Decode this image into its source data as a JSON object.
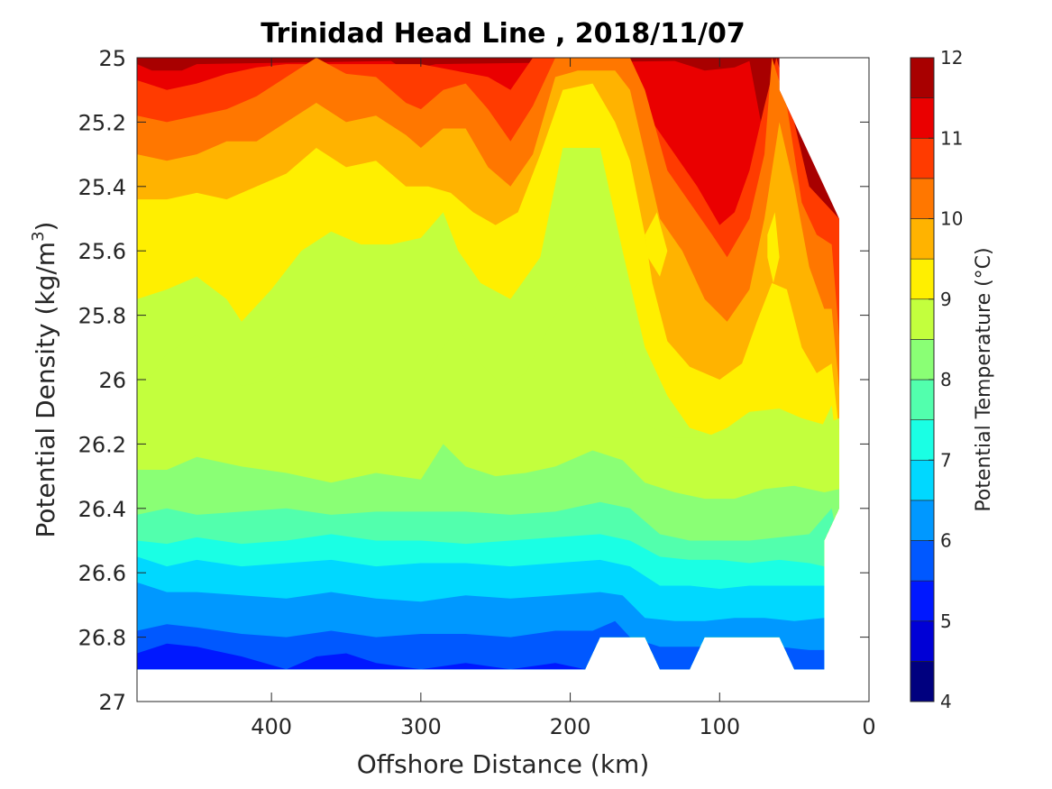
{
  "chart_data": {
    "type": "heatmap",
    "title": "Trinidad Head Line , 2018/11/07",
    "xlabel": "Offshore Distance (km)",
    "ylabel_main": "Potential Density (kg/m",
    "ylabel_sup": "3",
    "ylabel_end": ")",
    "xlim": [
      490,
      0
    ],
    "ylim": [
      25,
      27
    ],
    "y_reversed": true,
    "x_reversed": true,
    "x_ticks": [
      400,
      300,
      200,
      100,
      0
    ],
    "y_ticks": [
      25,
      25.2,
      25.4,
      25.6,
      25.8,
      26,
      26.2,
      26.4,
      26.6,
      26.8,
      27
    ],
    "x_tick_labels": [
      "400",
      "300",
      "200",
      "100",
      "0"
    ],
    "y_tick_labels": [
      "25",
      "25.2",
      "25.4",
      "25.6",
      "25.8",
      "26",
      "26.2",
      "26.4",
      "26.6",
      "26.8",
      "27"
    ],
    "colorbar": {
      "label": "Potential Temperature (°C)",
      "range": [
        4,
        12
      ],
      "ticks": [
        4,
        5,
        6,
        7,
        8,
        9,
        10,
        11,
        12
      ],
      "tick_labels": [
        "4",
        "5",
        "6",
        "7",
        "8",
        "9",
        "10",
        "11",
        "12"
      ],
      "levels": [
        4,
        4.5,
        5,
        5.5,
        6,
        6.5,
        7,
        7.5,
        8,
        8.5,
        9,
        9.5,
        10,
        10.5,
        11,
        11.5,
        12
      ],
      "colors": [
        "#00007f",
        "#0000d6",
        "#0018ff",
        "#0058ff",
        "#0098ff",
        "#00d8ff",
        "#1affe4",
        "#52ffad",
        "#8aff75",
        "#c3ff3d",
        "#ffef00",
        "#ffb300",
        "#ff7700",
        "#ff3b00",
        "#ea0000",
        "#a80000"
      ]
    },
    "contour_bands": [
      {
        "level": 8.0,
        "boundary": [
          [
            490,
            26.42
          ],
          [
            470,
            26.4
          ],
          [
            450,
            26.42
          ],
          [
            420,
            26.41
          ],
          [
            390,
            26.4
          ],
          [
            360,
            26.42
          ],
          [
            330,
            26.41
          ],
          [
            300,
            26.41
          ],
          [
            270,
            26.41
          ],
          [
            240,
            26.42
          ],
          [
            210,
            26.41
          ],
          [
            180,
            26.38
          ],
          [
            160,
            26.4
          ],
          [
            140,
            26.48
          ],
          [
            120,
            26.5
          ],
          [
            100,
            26.5
          ],
          [
            80,
            26.5
          ],
          [
            60,
            26.49
          ],
          [
            40,
            26.48
          ],
          [
            25,
            26.4
          ]
        ]
      },
      {
        "level": 7.5,
        "boundary": [
          [
            490,
            26.5
          ],
          [
            470,
            26.51
          ],
          [
            450,
            26.49
          ],
          [
            420,
            26.51
          ],
          [
            390,
            26.5
          ],
          [
            360,
            26.48
          ],
          [
            330,
            26.5
          ],
          [
            300,
            26.5
          ],
          [
            270,
            26.51
          ],
          [
            240,
            26.5
          ],
          [
            210,
            26.49
          ],
          [
            180,
            26.48
          ],
          [
            160,
            26.5
          ],
          [
            140,
            26.55
          ],
          [
            120,
            26.56
          ],
          [
            100,
            26.56
          ],
          [
            80,
            26.57
          ],
          [
            60,
            26.56
          ],
          [
            40,
            26.57
          ],
          [
            30,
            26.58
          ]
        ]
      },
      {
        "level": 7.0,
        "boundary": [
          [
            490,
            26.55
          ],
          [
            470,
            26.58
          ],
          [
            450,
            26.56
          ],
          [
            420,
            26.58
          ],
          [
            390,
            26.57
          ],
          [
            360,
            26.56
          ],
          [
            330,
            26.58
          ],
          [
            300,
            26.57
          ],
          [
            270,
            26.57
          ],
          [
            240,
            26.58
          ],
          [
            210,
            26.57
          ],
          [
            180,
            26.56
          ],
          [
            160,
            26.58
          ],
          [
            140,
            26.64
          ],
          [
            120,
            26.64
          ],
          [
            100,
            26.65
          ],
          [
            80,
            26.64
          ],
          [
            60,
            26.64
          ],
          [
            40,
            26.64
          ],
          [
            30,
            26.64
          ]
        ]
      },
      {
        "level": 6.5,
        "boundary": [
          [
            490,
            26.63
          ],
          [
            470,
            26.66
          ],
          [
            450,
            26.66
          ],
          [
            420,
            26.67
          ],
          [
            390,
            26.68
          ],
          [
            360,
            26.66
          ],
          [
            330,
            26.68
          ],
          [
            300,
            26.69
          ],
          [
            270,
            26.67
          ],
          [
            240,
            26.68
          ],
          [
            210,
            26.67
          ],
          [
            180,
            26.66
          ],
          [
            165,
            26.67
          ],
          [
            150,
            26.74
          ],
          [
            130,
            26.75
          ],
          [
            110,
            26.75
          ],
          [
            90,
            26.74
          ],
          [
            70,
            26.74
          ],
          [
            50,
            26.75
          ],
          [
            30,
            26.74
          ]
        ]
      },
      {
        "level": 6.0,
        "boundary": [
          [
            490,
            26.78
          ],
          [
            470,
            26.76
          ],
          [
            450,
            26.77
          ],
          [
            420,
            26.79
          ],
          [
            390,
            26.8
          ],
          [
            360,
            26.78
          ],
          [
            330,
            26.8
          ],
          [
            300,
            26.79
          ],
          [
            270,
            26.79
          ],
          [
            240,
            26.8
          ],
          [
            210,
            26.78
          ],
          [
            185,
            26.78
          ],
          [
            170,
            26.75
          ],
          [
            160,
            26.8
          ],
          [
            140,
            26.83
          ],
          [
            120,
            26.83
          ],
          [
            100,
            26.83
          ],
          [
            80,
            26.83
          ],
          [
            60,
            26.83
          ],
          [
            40,
            26.84
          ],
          [
            30,
            26.84
          ]
        ]
      },
      {
        "level": 5.5,
        "boundary": [
          [
            490,
            26.85
          ],
          [
            470,
            26.82
          ],
          [
            450,
            26.83
          ],
          [
            420,
            26.86
          ],
          [
            390,
            26.9
          ],
          [
            370,
            26.86
          ],
          [
            350,
            26.85
          ],
          [
            330,
            26.88
          ],
          [
            300,
            26.9
          ],
          [
            270,
            26.88
          ],
          [
            240,
            26.9
          ],
          [
            210,
            26.88
          ],
          [
            190,
            26.9
          ],
          [
            170,
            26.85
          ],
          [
            160,
            26.85
          ],
          [
            140,
            26.9
          ],
          [
            120,
            26.9
          ],
          [
            100,
            26.9
          ],
          [
            80,
            26.9
          ],
          [
            60,
            26.9
          ],
          [
            40,
            26.9
          ],
          [
            30,
            26.9
          ]
        ]
      }
    ]
  }
}
